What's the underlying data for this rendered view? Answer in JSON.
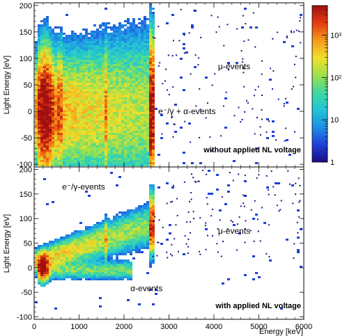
{
  "chart_data": [
    {
      "type": "heatmap",
      "panel": "top",
      "ylabel": "Light Energy [eV]",
      "xlim": [
        0,
        6000
      ],
      "ylim": [
        -105,
        205
      ],
      "yticks": [
        -100,
        -50,
        0,
        50,
        100,
        150,
        200
      ],
      "label": "without applied NL voltage",
      "annotations": [
        {
          "text": "μ-events",
          "x": 4450,
          "y": 85
        },
        {
          "text": "e⁻/γ + α-events",
          "x": 3400,
          "y": 0
        }
      ]
    },
    {
      "type": "heatmap",
      "panel": "bottom",
      "xlabel": "Energy [keV]",
      "ylabel": "Light Energy [eV]",
      "xlim": [
        0,
        6000
      ],
      "ylim": [
        -105,
        205
      ],
      "xticks": [
        0,
        1000,
        2000,
        3000,
        4000,
        5000,
        6000
      ],
      "yticks": [
        -100,
        -50,
        0,
        50,
        100,
        150,
        200
      ],
      "label": "with applied NL voltage",
      "annotations": [
        {
          "text": "e⁻/γ-events",
          "x": 1100,
          "y": 165
        },
        {
          "text": "μ-events",
          "x": 4450,
          "y": 75
        },
        {
          "text": "α-events",
          "x": 2500,
          "y": -42
        }
      ]
    }
  ],
  "colorbar": {
    "scale": "log",
    "range": [
      1,
      5000
    ],
    "ticks": [
      {
        "value": 1,
        "label": "1"
      },
      {
        "value": 10,
        "label": "10"
      },
      {
        "value": 100,
        "label": "10²"
      },
      {
        "value": 1000,
        "label": "10³"
      }
    ],
    "colors": [
      "#1a0d86",
      "#1f3fd6",
      "#1f8fe6",
      "#22c4d6",
      "#3fd9a0",
      "#9fe04a",
      "#f2e02a",
      "#f59a1a",
      "#e33a10",
      "#a01010"
    ]
  }
}
